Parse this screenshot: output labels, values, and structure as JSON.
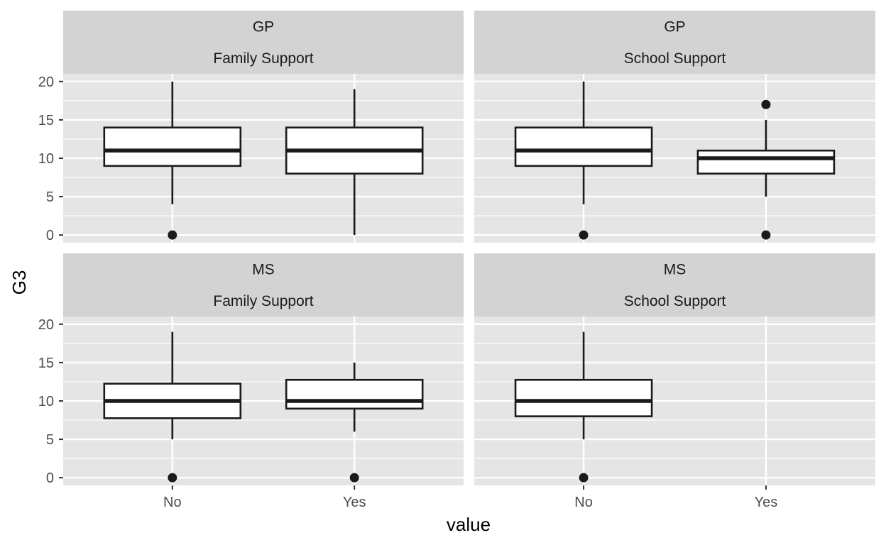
{
  "chart_data": {
    "type": "box",
    "xlabel": "value",
    "ylabel": "G3",
    "categories": [
      "No",
      "Yes"
    ],
    "ylim": [
      -1,
      21
    ],
    "yticks": [
      0,
      5,
      10,
      15,
      20
    ],
    "grid": true,
    "colors": {
      "panel_bg": "#e5e5e5",
      "strip_bg": "#d3d3d3",
      "grid": "#ffffff",
      "box_fill": "#ffffff",
      "box_line": "#1a1a1a"
    },
    "panels": [
      {
        "school": "GP",
        "support": "Family Support",
        "boxes": [
          {
            "category": "No",
            "lower_whisker": 4,
            "q1": 9,
            "median": 11,
            "q3": 14,
            "upper_whisker": 20,
            "outliers": [
              0
            ]
          },
          {
            "category": "Yes",
            "lower_whisker": 0,
            "q1": 8,
            "median": 11,
            "q3": 14,
            "upper_whisker": 19,
            "outliers": []
          }
        ]
      },
      {
        "school": "GP",
        "support": "School Support",
        "boxes": [
          {
            "category": "No",
            "lower_whisker": 4,
            "q1": 9,
            "median": 11,
            "q3": 14,
            "upper_whisker": 20,
            "outliers": [
              0
            ]
          },
          {
            "category": "Yes",
            "lower_whisker": 5,
            "q1": 8,
            "median": 10,
            "q3": 11,
            "upper_whisker": 15,
            "outliers": [
              0,
              17
            ]
          }
        ]
      },
      {
        "school": "MS",
        "support": "Family Support",
        "boxes": [
          {
            "category": "No",
            "lower_whisker": 5,
            "q1": 7.75,
            "median": 10,
            "q3": 12.25,
            "upper_whisker": 19,
            "outliers": [
              0
            ]
          },
          {
            "category": "Yes",
            "lower_whisker": 6,
            "q1": 9,
            "median": 10,
            "q3": 12.75,
            "upper_whisker": 15,
            "outliers": [
              0
            ]
          }
        ]
      },
      {
        "school": "MS",
        "support": "School Support",
        "boxes": [
          {
            "category": "No",
            "lower_whisker": 5,
            "q1": 8,
            "median": 10,
            "q3": 12.75,
            "upper_whisker": 19,
            "outliers": [
              0
            ]
          }
        ]
      }
    ]
  }
}
